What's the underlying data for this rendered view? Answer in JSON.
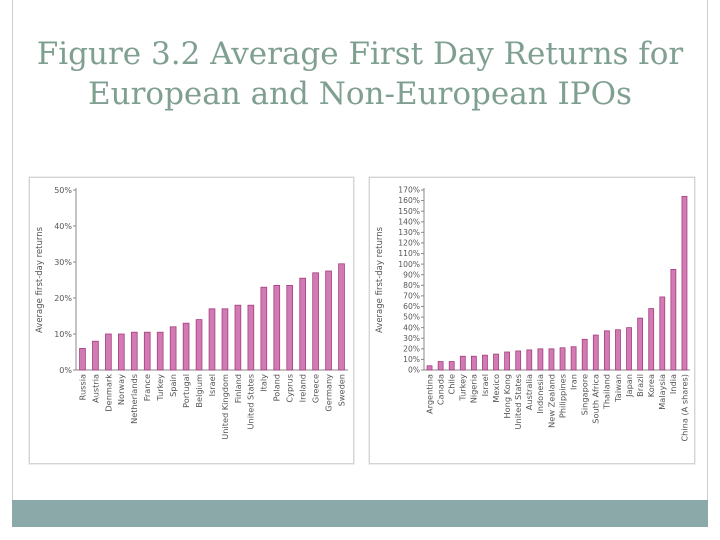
{
  "slide": {
    "title_line1": "Figure 3.2 Average First Day Returns for",
    "title_line2": "European and Non-European IPOs"
  },
  "colors": {
    "title": "#7fa091",
    "bar_fill": "#d27ab3",
    "bar_stroke": "#a33f7e",
    "footer": "#8aa9a8"
  },
  "chart_data": [
    {
      "type": "bar",
      "title": "",
      "xlabel": "",
      "ylabel": "Average first-day returns",
      "ylim": [
        0,
        50
      ],
      "ytick_step": 10,
      "ytick_labels": [
        "0%",
        "10%",
        "20%",
        "30%",
        "40%",
        "50%"
      ],
      "categories": [
        "Russia",
        "Austria",
        "Denmark",
        "Norway",
        "Netherlands",
        "France",
        "Turkey",
        "Spain",
        "Portugal",
        "Belgium",
        "Israel",
        "United Kingdom",
        "Finland",
        "United States",
        "Italy",
        "Poland",
        "Cyprus",
        "Ireland",
        "Greece",
        "Germany",
        "Sweden"
      ],
      "values": [
        6,
        8,
        10,
        10,
        10.5,
        10.5,
        10.5,
        12,
        13,
        14,
        17,
        17,
        18,
        18,
        23,
        23.5,
        23.5,
        25.5,
        27,
        27.5,
        29.5
      ]
    },
    {
      "type": "bar",
      "title": "",
      "xlabel": "",
      "ylabel": "Average first-day returns",
      "ylim": [
        0,
        170
      ],
      "ytick_step": 10,
      "ytick_labels": [
        "0%",
        "10%",
        "20%",
        "30%",
        "40%",
        "50%",
        "60%",
        "70%",
        "80%",
        "90%",
        "100%",
        "110%",
        "120%",
        "130%",
        "140%",
        "150%",
        "160%",
        "170%"
      ],
      "categories": [
        "Argentina",
        "Canada",
        "Chile",
        "Turkey",
        "Nigeria",
        "Israel",
        "Mexico",
        "Hong Kong",
        "United States",
        "Australia",
        "Indonesia",
        "New Zealand",
        "Philippines",
        "Iran",
        "Singapore",
        "South Africa",
        "Thailand",
        "Taiwan",
        "Japan",
        "Brazil",
        "Korea",
        "Malaysia",
        "India",
        "China (A shares)"
      ],
      "values": [
        4,
        8,
        8,
        13,
        13,
        14,
        15,
        17,
        18,
        19,
        20,
        20,
        21,
        22,
        29,
        33,
        37,
        38,
        40,
        49,
        58,
        69,
        95,
        164
      ]
    }
  ]
}
